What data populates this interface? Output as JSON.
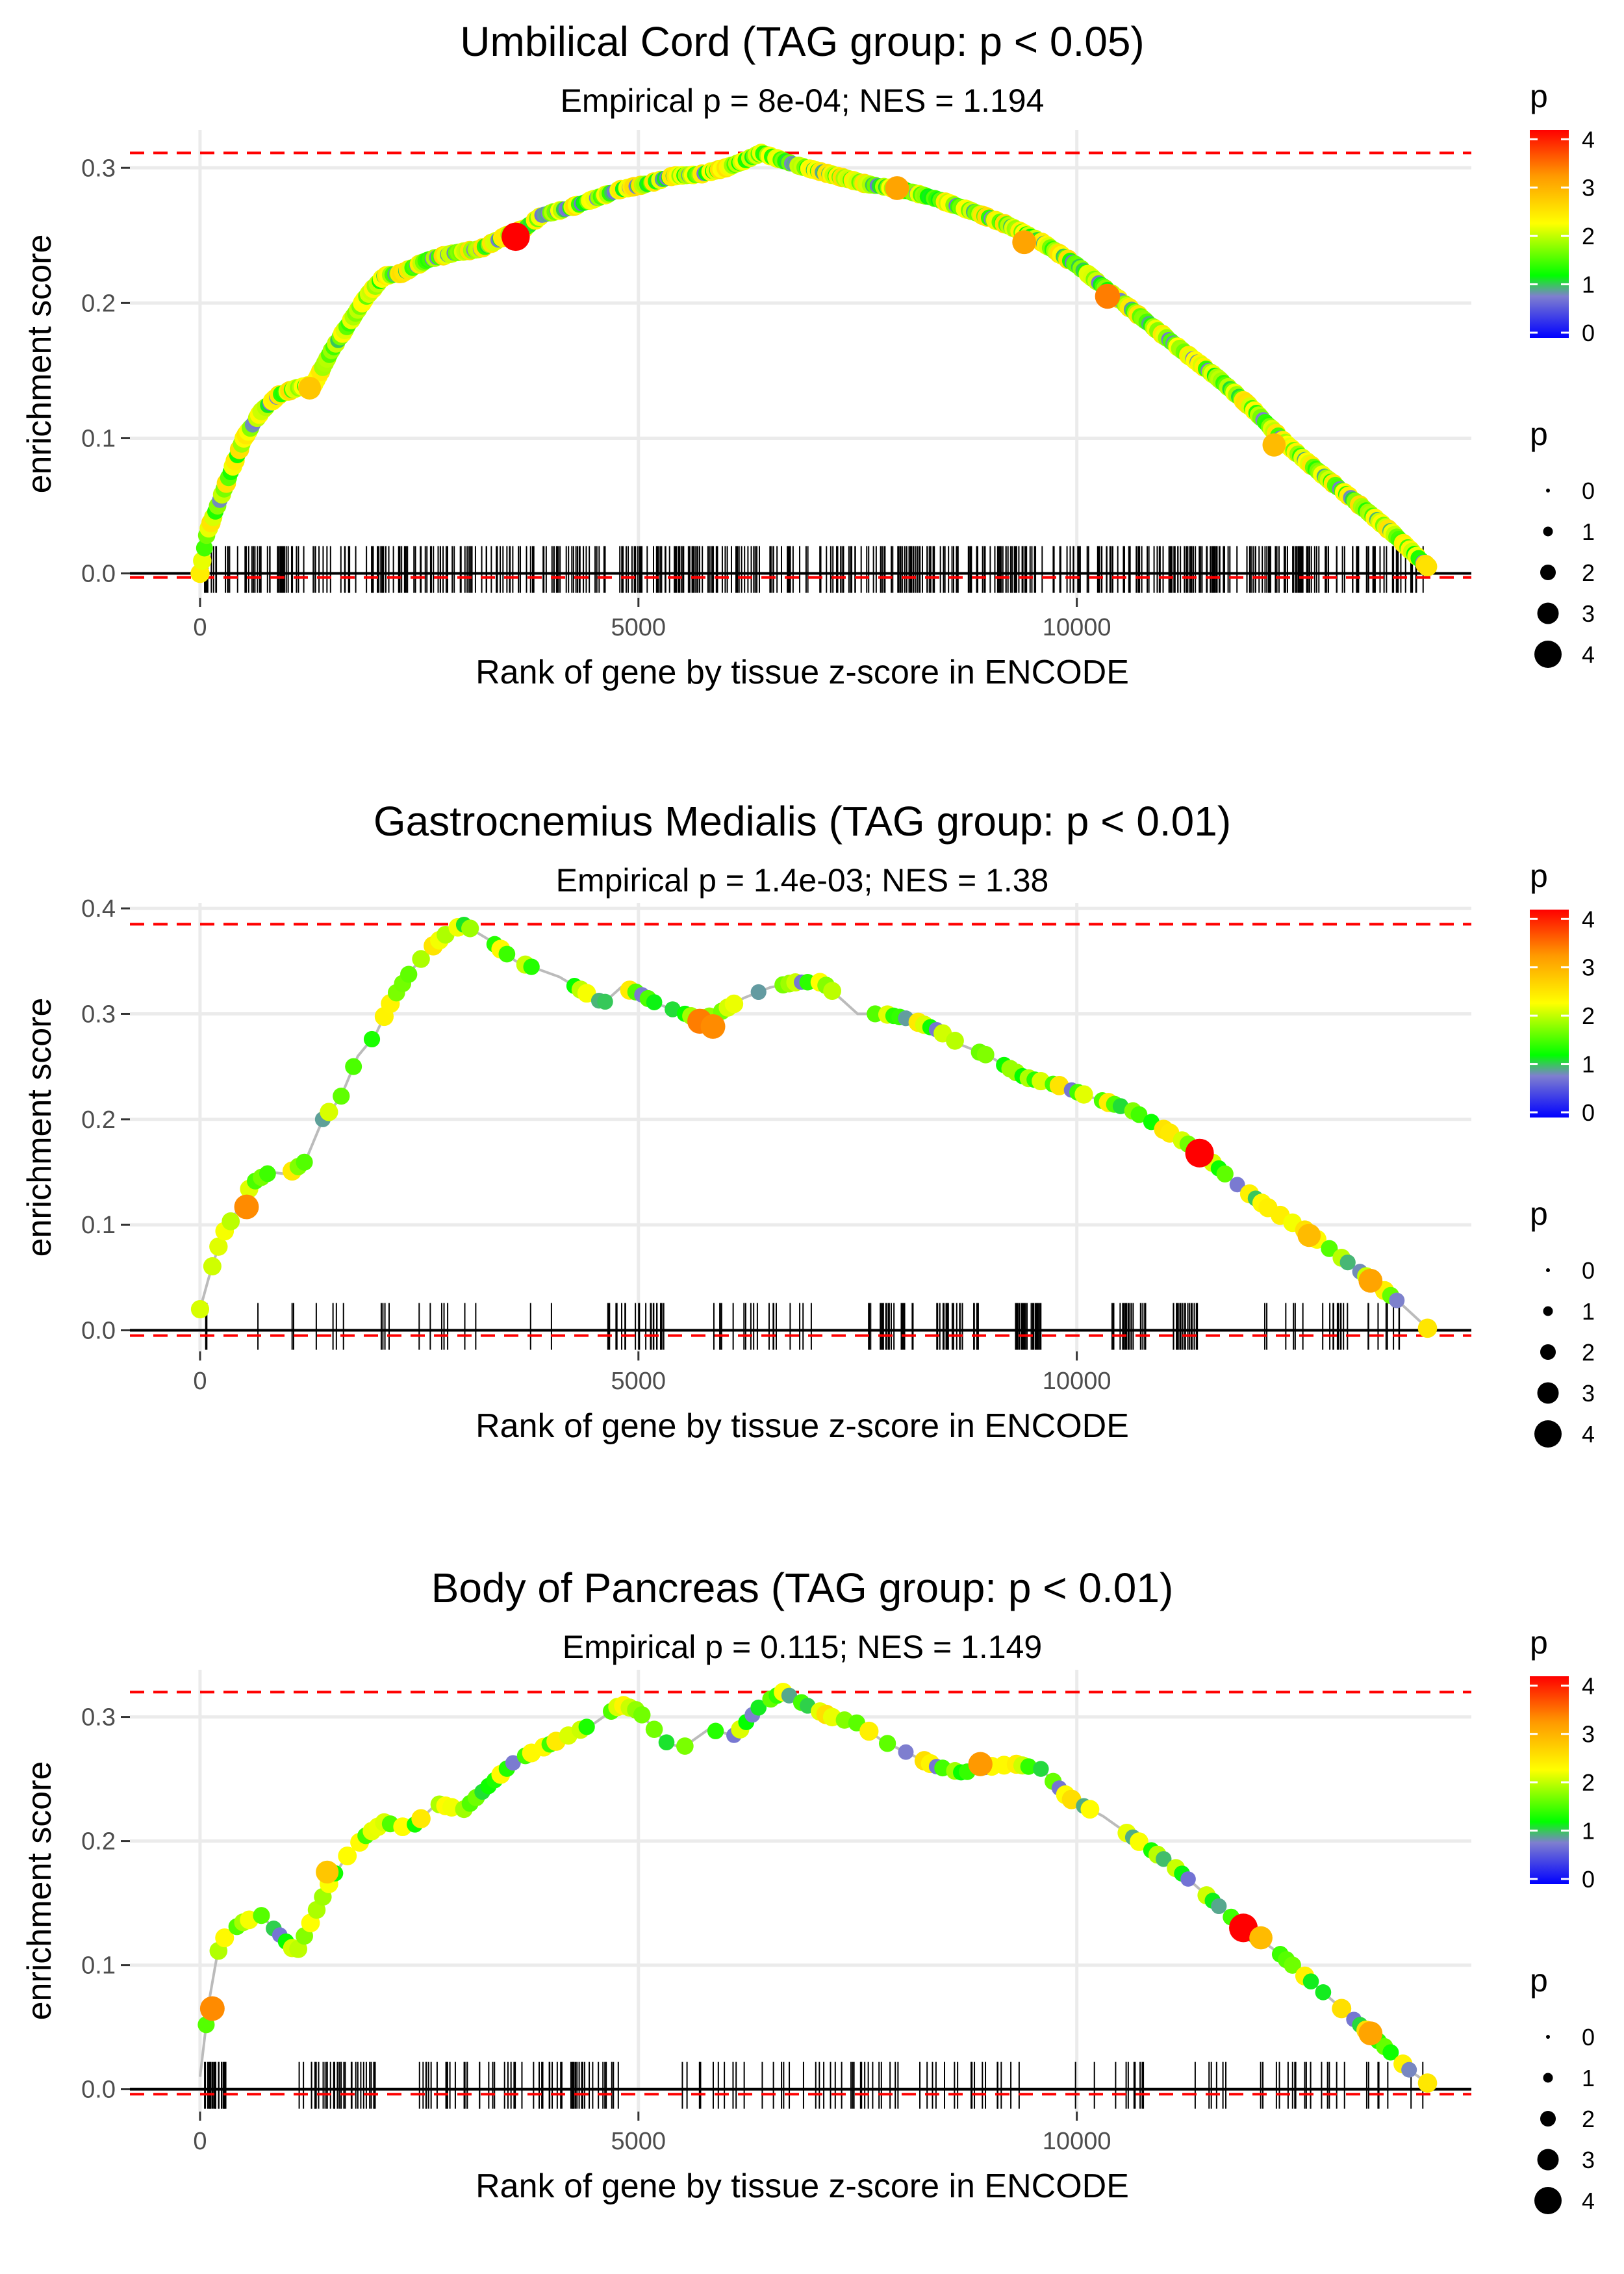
{
  "chart_data": [
    {
      "type": "scatter",
      "title": "Umbilical Cord (TAG group: p < 0.05)",
      "subtitle": "Empirical p = 8e-04; NES = 1.194",
      "xlabel": "Rank of gene by tissue z-score in ENCODE",
      "ylabel": "enrichment score",
      "xlim": [
        -800,
        14500
      ],
      "ylim": [
        -0.018,
        0.328
      ],
      "x_ticks": [
        0,
        5000,
        10000
      ],
      "x_tick_labels": [
        "0",
        "5000",
        "10000"
      ],
      "y_ticks": [
        0.0,
        0.1,
        0.2,
        0.3
      ],
      "y_tick_labels": [
        "0.0",
        "0.1",
        "0.2",
        "0.3"
      ],
      "max_es": 0.311,
      "min_es": -0.003,
      "es_curve": {
        "x": [
          0,
          80,
          200,
          350,
          500,
          700,
          900,
          1100,
          1300,
          1500,
          1700,
          1900,
          2100,
          2300,
          2600,
          2900,
          3200,
          3500,
          3700,
          3900,
          4200,
          4500,
          4800,
          5100,
          5400,
          5700,
          6000,
          6200,
          6400,
          6800,
          7200,
          7600,
          8000,
          8400,
          8800,
          9200,
          9600,
          10000,
          10400,
          10800,
          11200,
          11600,
          12000,
          12400,
          12800,
          13200,
          13600,
          14000
        ],
        "y": [
          0.0,
          0.03,
          0.05,
          0.075,
          0.1,
          0.12,
          0.132,
          0.137,
          0.14,
          0.165,
          0.185,
          0.205,
          0.22,
          0.222,
          0.232,
          0.237,
          0.24,
          0.25,
          0.255,
          0.265,
          0.27,
          0.277,
          0.284,
          0.288,
          0.294,
          0.295,
          0.3,
          0.305,
          0.311,
          0.302,
          0.295,
          0.288,
          0.284,
          0.277,
          0.268,
          0.258,
          0.245,
          0.228,
          0.207,
          0.186,
          0.165,
          0.145,
          0.122,
          0.095,
          0.073,
          0.052,
          0.03,
          0.005
        ]
      },
      "highlighted_points": [
        {
          "x": 3600,
          "y": 0.249,
          "p": 4.2
        },
        {
          "x": 10350,
          "y": 0.205,
          "p": 3.3
        },
        {
          "x": 7950,
          "y": 0.285,
          "p": 3.0
        },
        {
          "x": 9400,
          "y": 0.245,
          "p": 3.0
        },
        {
          "x": 12250,
          "y": 0.095,
          "p": 2.8
        },
        {
          "x": 1250,
          "y": 0.137,
          "p": 2.7
        }
      ],
      "gene_hits_density": "dense",
      "gene_hit_range": [
        50,
        13950
      ]
    },
    {
      "type": "scatter",
      "title": "Gastrocnemius Medialis (TAG group: p < 0.01)",
      "subtitle": "Empirical p = 1.4e-03; NES = 1.38",
      "xlabel": "Rank of gene by tissue z-score in ENCODE",
      "ylabel": "enrichment score",
      "xlim": [
        -800,
        14500
      ],
      "ylim": [
        -0.02,
        0.405
      ],
      "x_ticks": [
        0,
        5000,
        10000
      ],
      "x_tick_labels": [
        "0",
        "5000",
        "10000"
      ],
      "y_ticks": [
        0.0,
        0.1,
        0.2,
        0.3,
        0.4
      ],
      "y_tick_labels": [
        "0.0",
        "0.1",
        "0.2",
        "0.3",
        "0.4"
      ],
      "max_es": 0.385,
      "min_es": -0.005,
      "es_curve": {
        "x": [
          0,
          100,
          250,
          400,
          600,
          800,
          1000,
          1200,
          1400,
          1600,
          1800,
          2000,
          2200,
          2400,
          2600,
          2800,
          3000,
          3300,
          3600,
          4100,
          4600,
          4800,
          5000,
          5200,
          5700,
          5900,
          6200,
          6500,
          6800,
          7100,
          7500,
          7800,
          8100,
          8400,
          8700,
          9000,
          9400,
          9800,
          10200,
          10600,
          11000,
          11400,
          11800,
          12200,
          12600,
          13000,
          13400,
          13700,
          14000
        ],
        "y": [
          0.02,
          0.05,
          0.09,
          0.11,
          0.14,
          0.15,
          0.148,
          0.16,
          0.2,
          0.22,
          0.26,
          0.28,
          0.315,
          0.34,
          0.36,
          0.375,
          0.385,
          0.37,
          0.35,
          0.335,
          0.31,
          0.325,
          0.32,
          0.31,
          0.295,
          0.3,
          0.315,
          0.325,
          0.33,
          0.33,
          0.3,
          0.3,
          0.295,
          0.285,
          0.27,
          0.26,
          0.24,
          0.232,
          0.22,
          0.21,
          0.19,
          0.17,
          0.14,
          0.115,
          0.095,
          0.07,
          0.045,
          0.025,
          0.002
        ]
      },
      "highlighted_points": [
        {
          "x": 11400,
          "y": 0.168,
          "p": 4.3
        },
        {
          "x": 5700,
          "y": 0.293,
          "p": 3.3
        },
        {
          "x": 5850,
          "y": 0.288,
          "p": 3.2
        },
        {
          "x": 530,
          "y": 0.117,
          "p": 3.2
        },
        {
          "x": 13350,
          "y": 0.047,
          "p": 3.0
        },
        {
          "x": 12650,
          "y": 0.09,
          "p": 2.8
        }
      ],
      "gene_hits_density": "clustered",
      "gene_hit_range": [
        50,
        13950
      ]
    },
    {
      "type": "scatter",
      "title": "Body of Pancreas (TAG group: p < 0.01)",
      "subtitle": "Empirical p = 0.115; NES = 1.149",
      "xlabel": "Rank of gene by tissue z-score in ENCODE",
      "ylabel": "enrichment score",
      "xlim": [
        -800,
        14500
      ],
      "ylim": [
        -0.018,
        0.338
      ],
      "x_ticks": [
        0,
        5000,
        10000
      ],
      "x_tick_labels": [
        "0",
        "5000",
        "10000"
      ],
      "y_ticks": [
        0.0,
        0.1,
        0.2,
        0.3
      ],
      "y_tick_labels": [
        "0.0",
        "0.1",
        "0.2",
        "0.3"
      ],
      "max_es": 0.32,
      "min_es": -0.004,
      "es_curve": {
        "x": [
          0,
          100,
          200,
          300,
          500,
          700,
          1100,
          1300,
          1500,
          1700,
          1900,
          2100,
          2400,
          2700,
          3000,
          3300,
          3600,
          3900,
          4200,
          4500,
          4800,
          5000,
          5300,
          5500,
          5800,
          6100,
          6400,
          6650,
          6900,
          7200,
          7500,
          7800,
          8100,
          8400,
          8700,
          9000,
          9300,
          9600,
          9900,
          10300,
          10700,
          11100,
          11500,
          11900,
          12300,
          12700,
          13100,
          13500,
          13800,
          14000
        ],
        "y": [
          0.01,
          0.07,
          0.11,
          0.125,
          0.135,
          0.14,
          0.11,
          0.14,
          0.17,
          0.19,
          0.205,
          0.215,
          0.21,
          0.23,
          0.225,
          0.245,
          0.265,
          0.275,
          0.285,
          0.295,
          0.31,
          0.305,
          0.28,
          0.275,
          0.29,
          0.285,
          0.31,
          0.32,
          0.31,
          0.3,
          0.295,
          0.28,
          0.27,
          0.26,
          0.255,
          0.26,
          0.262,
          0.258,
          0.235,
          0.22,
          0.2,
          0.18,
          0.155,
          0.13,
          0.11,
          0.085,
          0.06,
          0.035,
          0.015,
          0.005
        ]
      },
      "highlighted_points": [
        {
          "x": 11900,
          "y": 0.13,
          "p": 4.3
        },
        {
          "x": 140,
          "y": 0.065,
          "p": 3.2
        },
        {
          "x": 8900,
          "y": 0.262,
          "p": 3.1
        },
        {
          "x": 13350,
          "y": 0.045,
          "p": 3.0
        },
        {
          "x": 12100,
          "y": 0.122,
          "p": 2.8
        },
        {
          "x": 1450,
          "y": 0.175,
          "p": 2.7
        }
      ],
      "gene_hits_density": "clustered",
      "gene_hit_range": [
        50,
        13950
      ]
    }
  ],
  "legend": {
    "color_title": "p",
    "color_ticks": [
      "0",
      "1",
      "2",
      "3",
      "4"
    ],
    "size_title": "p",
    "size_labels": [
      "0",
      "1",
      "2",
      "3",
      "4"
    ],
    "color_scale": [
      "#0000ff",
      "#7f7fcf",
      "#00ff00",
      "#ffff00",
      "#ff8c00",
      "#ff0000"
    ]
  }
}
